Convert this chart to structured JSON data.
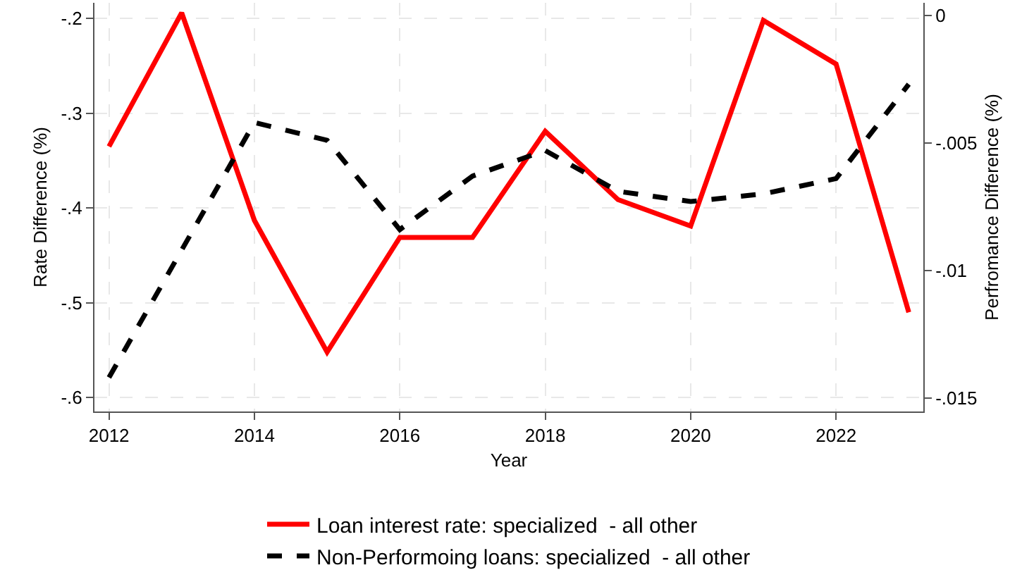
{
  "chart_data": {
    "type": "line",
    "xlabel": "Year",
    "ylabel": "Rate Difference (%)",
    "y2label": "Perfromance Difference (%)",
    "x": [
      2012,
      2013,
      2014,
      2015,
      2016,
      2017,
      2018,
      2019,
      2020,
      2021,
      2022,
      2023
    ],
    "xlim": [
      2011.8,
      2023.2
    ],
    "xticks": [
      2012,
      2014,
      2016,
      2018,
      2020,
      2022
    ],
    "ylim": [
      -0.6147,
      -0.1834
    ],
    "yticks": [
      {
        "value": -0.2,
        "label": "-.2"
      },
      {
        "value": -0.3,
        "label": "-.3"
      },
      {
        "value": -0.4,
        "label": "-.4"
      },
      {
        "value": -0.5,
        "label": "-.5"
      },
      {
        "value": -0.6,
        "label": "-.6"
      }
    ],
    "y2lim": [
      -0.01553,
      0.00049
    ],
    "y2ticks": [
      0,
      {
        "value": -0.005,
        "label": "-.005"
      },
      {
        "value": -0.01,
        "label": "-.01"
      },
      {
        "value": -0.015,
        "label": "-.015"
      }
    ],
    "series": [
      {
        "name": "Loan interest rate: specialized  - all other",
        "color": "#ff0000",
        "line_style": "solid",
        "values": [
          -0.335,
          -0.194,
          -0.413,
          -0.552,
          -0.431,
          -0.431,
          -0.319,
          -0.391,
          -0.419,
          -0.202,
          -0.248,
          -0.51
        ]
      },
      {
        "name": "Non-Performoing loans: specialized  - all other",
        "color": "#000000",
        "line_style": "dashed",
        "axis": "y2",
        "values": [
          -0.0142,
          -0.0092,
          -0.0042,
          -0.0049,
          -0.0084,
          -0.0063,
          -0.0053,
          -0.0069,
          -0.0073,
          -0.007,
          -0.0064,
          -0.0027
        ]
      }
    ],
    "grid": true,
    "legend": "bottom",
    "marker": "none"
  }
}
